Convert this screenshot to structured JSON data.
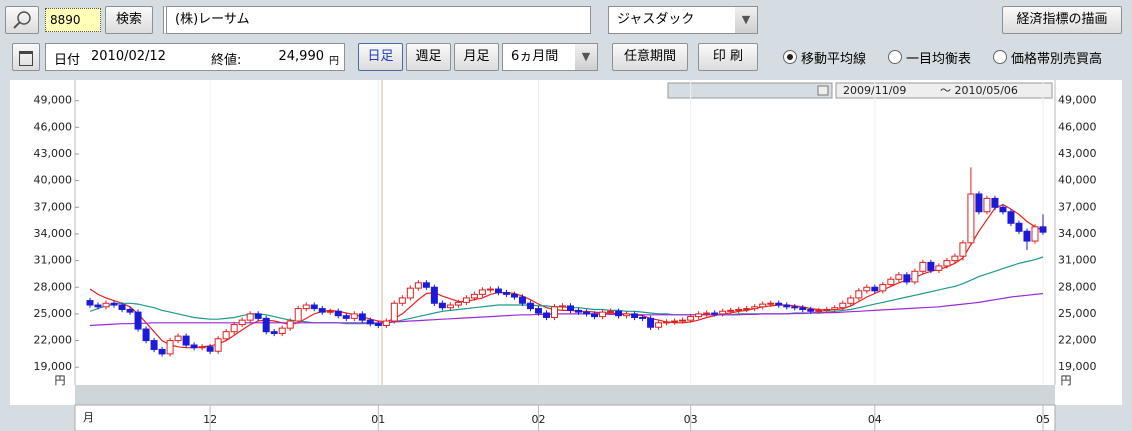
{
  "toolbar": {
    "code": "8890",
    "search": "検索",
    "company": "(株)レーサム",
    "market": "ジャスダック",
    "indicator_button": "経済指標の描画",
    "date_label": "日付",
    "date": "2010/02/12",
    "close_label": "終値:",
    "close_value": "24,990",
    "close_unit": "円",
    "periods": [
      "日足",
      "週足",
      "月足"
    ],
    "range": "6ヵ月間",
    "custom_range": "任意期間",
    "print": "印 刷",
    "overlays": [
      "移動平均線",
      "一目均衡表",
      "価格帯別売買高"
    ]
  },
  "chart_data": {
    "type": "candlestick",
    "date_range": [
      "2009/11/09",
      "～ 2010/05/06"
    ],
    "x_unit": "月",
    "y_unit": "円",
    "categories": [
      null,
      null,
      null,
      null,
      null,
      null,
      null,
      null,
      null,
      null,
      null,
      null,
      null,
      null,
      null,
      "12",
      null,
      null,
      null,
      null,
      null,
      null,
      null,
      null,
      null,
      null,
      null,
      null,
      null,
      null,
      null,
      null,
      null,
      null,
      null,
      null,
      "01",
      null,
      null,
      null,
      null,
      null,
      null,
      null,
      null,
      null,
      null,
      null,
      null,
      null,
      null,
      null,
      null,
      null,
      null,
      null,
      "02",
      null,
      null,
      null,
      null,
      null,
      null,
      null,
      null,
      null,
      null,
      null,
      null,
      null,
      null,
      null,
      null,
      null,
      null,
      "03",
      null,
      null,
      null,
      null,
      null,
      null,
      null,
      null,
      null,
      null,
      null,
      null,
      null,
      null,
      null,
      null,
      null,
      null,
      null,
      null,
      null,
      null,
      "04",
      null,
      null,
      null,
      null,
      null,
      null,
      null,
      null,
      null,
      null,
      null,
      null,
      null,
      null,
      null,
      null,
      null,
      null,
      null,
      null,
      "05"
    ],
    "open": [
      26500,
      26000,
      25800,
      26200,
      26000,
      25500,
      25200,
      23300,
      22000,
      21000,
      20500,
      22000,
      22500,
      21500,
      21200,
      21300,
      20800,
      22200,
      23000,
      23800,
      24300,
      25000,
      24500,
      23000,
      22800,
      23400,
      24200,
      25600,
      26000,
      25600,
      25200,
      25300,
      24800,
      24500,
      25000,
      24300,
      23900,
      23700,
      24200,
      26200,
      26800,
      27900,
      28500,
      28000,
      26200,
      25700,
      26000,
      26300,
      26800,
      27200,
      27700,
      27800,
      27400,
      27200,
      26900,
      26200,
      25600,
      25100,
      24600,
      25800,
      25900,
      25400,
      25200,
      25000,
      24700,
      25200,
      25300,
      24800,
      25000,
      24600,
      24500,
      23500,
      24000,
      24100,
      24200,
      24300,
      24700,
      25000,
      25100,
      25000,
      25300,
      25400,
      25500,
      25600,
      25800,
      26100,
      26200,
      26000,
      25800,
      25700,
      25500,
      25300,
      25400,
      25500,
      25700,
      26200,
      26800,
      27600,
      28000,
      27600,
      28300,
      28900,
      29400,
      28600,
      29800,
      30800,
      29900,
      30400,
      31000,
      31500,
      33000,
      38500,
      36500,
      38000,
      37000,
      36500,
      35200,
      34300,
      33200,
      34800
    ],
    "high": [
      26800,
      26300,
      26500,
      26500,
      26300,
      25800,
      25500,
      23600,
      22300,
      21300,
      22300,
      22800,
      22800,
      21800,
      21600,
      21600,
      22500,
      23300,
      24100,
      24600,
      25300,
      25300,
      24800,
      23300,
      23700,
      24500,
      25900,
      26300,
      26300,
      25900,
      25600,
      25600,
      25100,
      25300,
      25300,
      24600,
      24200,
      24500,
      26500,
      27100,
      28200,
      28800,
      28800,
      28300,
      26500,
      26300,
      26600,
      27100,
      27500,
      28000,
      28100,
      28100,
      27700,
      27500,
      27200,
      26500,
      25900,
      25400,
      26100,
      26200,
      26200,
      25700,
      25500,
      25300,
      25500,
      25600,
      25600,
      25300,
      25300,
      24900,
      24800,
      24300,
      24400,
      24500,
      24600,
      25000,
      25300,
      25400,
      25400,
      25600,
      25700,
      25800,
      25900,
      26100,
      26400,
      26500,
      26500,
      26300,
      26100,
      26000,
      25800,
      25700,
      25800,
      26000,
      26500,
      27100,
      27900,
      28300,
      28300,
      28600,
      29200,
      29700,
      29700,
      30100,
      31100,
      31100,
      30700,
      31300,
      31800,
      33300,
      41500,
      38800,
      38300,
      38300,
      37300,
      36800,
      35500,
      34600,
      35100,
      36200
    ],
    "low": [
      25700,
      25500,
      25500,
      25700,
      25200,
      24900,
      23000,
      21700,
      20700,
      20200,
      20200,
      21700,
      21200,
      20900,
      20900,
      20500,
      20500,
      21900,
      22700,
      23500,
      24000,
      24200,
      22700,
      22500,
      22500,
      23100,
      23900,
      25300,
      25300,
      24900,
      24900,
      24500,
      24200,
      24200,
      24000,
      23600,
      23400,
      23400,
      23900,
      25900,
      26500,
      27600,
      27700,
      25900,
      25400,
      25400,
      25700,
      26000,
      26500,
      26900,
      27400,
      27100,
      26900,
      26600,
      25900,
      25300,
      24800,
      24300,
      24300,
      25500,
      25100,
      24900,
      24700,
      24400,
      24400,
      24900,
      24500,
      24500,
      24300,
      24200,
      23200,
      23200,
      23700,
      23800,
      23900,
      24000,
      24400,
      24700,
      24700,
      24700,
      25000,
      25100,
      25200,
      25300,
      25500,
      25800,
      25700,
      25500,
      25400,
      25200,
      25000,
      25000,
      25100,
      25200,
      25400,
      25900,
      26500,
      27300,
      27300,
      27300,
      28000,
      28600,
      28300,
      28300,
      29500,
      29600,
      29600,
      30100,
      30700,
      31000,
      32700,
      36200,
      36200,
      36700,
      36200,
      34900,
      34000,
      32200,
      32900,
      33900
    ],
    "close": [
      26000,
      25800,
      26200,
      26000,
      25500,
      25200,
      23300,
      22000,
      21000,
      20500,
      22000,
      22500,
      21500,
      21200,
      21300,
      20800,
      22200,
      23000,
      23800,
      24300,
      25000,
      24500,
      23000,
      22800,
      23400,
      24200,
      25600,
      26000,
      25600,
      25200,
      25300,
      24800,
      24500,
      25000,
      24300,
      23900,
      23700,
      24200,
      26200,
      26800,
      27900,
      28500,
      28000,
      26200,
      25700,
      26000,
      26300,
      26800,
      27200,
      27700,
      27800,
      27400,
      27200,
      26900,
      26200,
      25600,
      25100,
      24600,
      25800,
      25900,
      25400,
      25200,
      25000,
      24700,
      25200,
      25300,
      24800,
      25000,
      24600,
      24500,
      23500,
      24000,
      24100,
      24200,
      24300,
      24700,
      25000,
      25100,
      25000,
      25300,
      25400,
      25500,
      25600,
      25800,
      26100,
      26200,
      26000,
      25800,
      25700,
      25500,
      25300,
      25400,
      25500,
      25700,
      26200,
      26800,
      27600,
      28000,
      27600,
      28300,
      28900,
      29400,
      28600,
      29800,
      30800,
      29900,
      30400,
      31000,
      31500,
      33000,
      38500,
      36500,
      38000,
      37000,
      36500,
      35200,
      34300,
      33200,
      34800,
      34200
    ],
    "up_color": "#e02020",
    "down_color": "#1a1ad8",
    "lines": [
      {
        "color": "#e8201c",
        "values": [
          27800,
          27200,
          26800,
          26500,
          26200,
          25800,
          25000,
          24000,
          23000,
          22000,
          21500,
          21300,
          21200,
          21200,
          21300,
          21400,
          21600,
          22000,
          22600,
          23200,
          23800,
          24200,
          24300,
          24200,
          24000,
          23800,
          24000,
          24500,
          25000,
          25300,
          25400,
          25300,
          25100,
          24900,
          24700,
          24400,
          24200,
          24100,
          24500,
          25000,
          25800,
          26600,
          27300,
          27400,
          27000,
          26700,
          26400,
          26400,
          26600,
          26800,
          27200,
          27400,
          27400,
          27300,
          27000,
          26600,
          26100,
          25700,
          25500,
          25400,
          25400,
          25300,
          25300,
          25200,
          25100,
          25100,
          25000,
          25000,
          24900,
          24800,
          24500,
          24300,
          24100,
          24000,
          24000,
          24100,
          24300,
          24600,
          24800,
          25000,
          25100,
          25300,
          25400,
          25600,
          25800,
          25900,
          26000,
          26000,
          25900,
          25800,
          25600,
          25500,
          25400,
          25500,
          25600,
          25900,
          26400,
          26900,
          27300,
          27700,
          28100,
          28500,
          28800,
          29100,
          29500,
          29800,
          30000,
          30300,
          30700,
          31300,
          32800,
          34300,
          35600,
          36900,
          37300,
          36800,
          36200,
          35400,
          34800,
          34400
        ]
      },
      {
        "color": "#1a9a8e",
        "values": [
          25300,
          25600,
          25900,
          26100,
          26200,
          26200,
          26100,
          25900,
          25700,
          25400,
          25200,
          25000,
          24800,
          24600,
          24500,
          24400,
          24400,
          24500,
          24600,
          24800,
          25000,
          25000,
          24900,
          24700,
          24500,
          24300,
          24200,
          24100,
          24000,
          24000,
          24000,
          24000,
          23900,
          23900,
          23900,
          23900,
          23900,
          24000,
          24100,
          24300,
          24500,
          24700,
          24900,
          25100,
          25300,
          25400,
          25500,
          25600,
          25700,
          25800,
          25900,
          26000,
          26000,
          26000,
          26000,
          26000,
          25900,
          25900,
          25800,
          25800,
          25700,
          25700,
          25600,
          25500,
          25500,
          25400,
          25400,
          25300,
          25300,
          25200,
          25100,
          25000,
          25000,
          24900,
          24900,
          24900,
          24900,
          24900,
          24900,
          24900,
          24900,
          25000,
          25000,
          25000,
          25000,
          25000,
          25000,
          25000,
          25100,
          25100,
          25100,
          25200,
          25200,
          25300,
          25400,
          25500,
          25700,
          25900,
          26100,
          26300,
          26500,
          26700,
          26900,
          27100,
          27300,
          27500,
          27700,
          27900,
          28100,
          28400,
          28800,
          29200,
          29500,
          29800,
          30100,
          30400,
          30700,
          30900,
          31100,
          31400
        ]
      },
      {
        "color": "#9a2ad8",
        "values": [
          23700,
          23750,
          23800,
          23850,
          23900,
          23900,
          23950,
          23950,
          24000,
          24000,
          24000,
          24000,
          24000,
          24000,
          24000,
          24000,
          24000,
          24000,
          24000,
          24000,
          24000,
          24000,
          24000,
          24000,
          24000,
          24000,
          24000,
          24000,
          24000,
          24000,
          24000,
          24000,
          24000,
          24000,
          24000,
          24000,
          24000,
          24050,
          24100,
          24150,
          24200,
          24250,
          24300,
          24350,
          24400,
          24450,
          24500,
          24550,
          24600,
          24650,
          24700,
          24750,
          24800,
          24850,
          24900,
          24900,
          24950,
          24950,
          25000,
          25000,
          25000,
          25000,
          25000,
          25000,
          25000,
          24950,
          24950,
          24950,
          24950,
          24900,
          24900,
          24900,
          24900,
          24900,
          24900,
          24900,
          24900,
          24900,
          24900,
          24900,
          24900,
          24900,
          24950,
          24950,
          25000,
          25000,
          25000,
          25000,
          25050,
          25050,
          25100,
          25100,
          25150,
          25150,
          25200,
          25250,
          25300,
          25350,
          25400,
          25450,
          25500,
          25550,
          25600,
          25650,
          25700,
          25750,
          25800,
          25900,
          26000,
          26100,
          26200,
          26300,
          26450,
          26600,
          26750,
          26900,
          27000,
          27100,
          27200,
          27300
        ]
      }
    ],
    "ylim": [
      17000,
      50200
    ],
    "yticks": [
      {
        "value": 49000,
        "label": "49,000"
      },
      {
        "value": 46000,
        "label": "46,000"
      },
      {
        "value": 43000,
        "label": "43,000"
      },
      {
        "value": 40000,
        "label": "40,000"
      },
      {
        "value": 37000,
        "label": "37,000"
      },
      {
        "value": 34000,
        "label": "34,000"
      },
      {
        "value": 31000,
        "label": "31,000"
      },
      {
        "value": 28000,
        "label": "28,000"
      },
      {
        "value": 25000,
        "label": "25,000"
      },
      {
        "value": 22000,
        "label": "22,000"
      },
      {
        "value": 19000,
        "label": "19,000"
      }
    ],
    "xgrid": true
  }
}
